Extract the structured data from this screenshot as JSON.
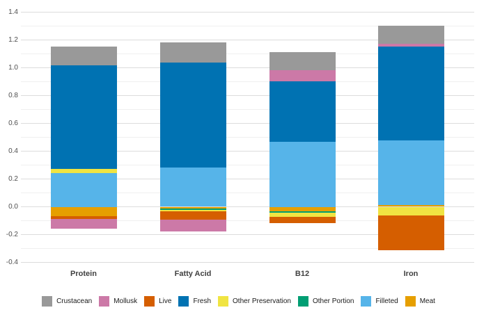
{
  "chart_data": {
    "type": "bar",
    "stacked": true,
    "orientation": "vertical",
    "title": "",
    "xlabel": "",
    "ylabel": "",
    "categories": [
      "Protein",
      "Fatty Acid",
      "B12",
      "Iron"
    ],
    "series": [
      {
        "name": "Crustacean",
        "color": "#999999",
        "values": [
          0.135,
          0.145,
          0.13,
          0.13
        ]
      },
      {
        "name": "Mollusk",
        "color": "#CC79A7",
        "values": [
          -0.07,
          -0.085,
          0.08,
          0.02
        ]
      },
      {
        "name": "Live",
        "color": "#D55E00",
        "values": [
          -0.02,
          -0.063,
          -0.045,
          -0.25
        ]
      },
      {
        "name": "Fresh",
        "color": "#0072B2",
        "values": [
          0.745,
          0.755,
          0.435,
          0.675
        ]
      },
      {
        "name": "Other Preservation",
        "color": "#F0E442",
        "values": [
          0.03,
          -0.01,
          -0.03,
          -0.063
        ]
      },
      {
        "name": "Other Portion",
        "color": "#009E73",
        "values": [
          0.0,
          -0.01,
          -0.01,
          0.0
        ]
      },
      {
        "name": "Filleted",
        "color": "#56B4E9",
        "values": [
          0.245,
          0.283,
          0.47,
          0.465
        ]
      },
      {
        "name": "Meat",
        "color": "#E69F00",
        "values": [
          -0.065,
          -0.01,
          -0.03,
          0.013
        ]
      }
    ],
    "stack_note": "positive values stack upward from 0 and negative values stack downward from 0, both in reverse legend order (Meat nearest zero, Crustacean furthest)",
    "ylim": [
      -0.4,
      1.4
    ],
    "yticks": [
      "1.4",
      "1.2",
      "1.0",
      "0.8",
      "0.6",
      "0.4",
      "0.2",
      "0.0",
      "-0.2",
      "-0.4"
    ],
    "minor_grid_step": 0.1,
    "grid": true,
    "legend_position": "bottom"
  }
}
